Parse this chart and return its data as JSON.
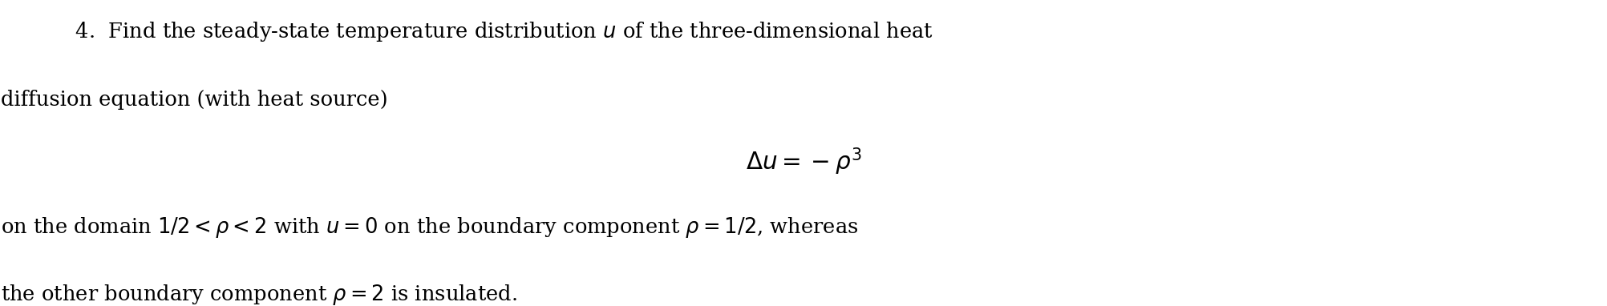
{
  "background_color": "#ffffff",
  "figsize": [
    20.04,
    3.82
  ],
  "dpi": 100,
  "line1": "    4.  Find the steady-state temperature distribution $u$ of the three-dimensional heat",
  "line2": "diffusion equation (with heat source)",
  "equation": "$\\Delta u = -\\rho^3$",
  "line3": "on the domain $1/2 < \\rho < 2$ with $u = 0$ on the boundary component $\\rho = 1/2$, whereas",
  "line4": "the other boundary component $\\rho = 2$ is insulated.",
  "text_color": "#000000",
  "fontsize": 18.5
}
